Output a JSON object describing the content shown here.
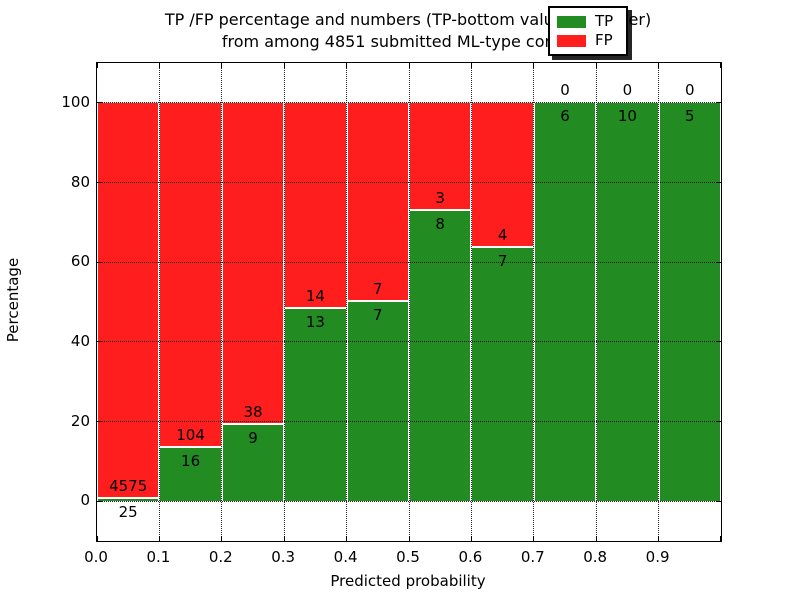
{
  "title": {
    "line1": "TP /FP percentage and numbers (TP-bottom value, FP-upper)",
    "line2": "from among 4851 submitted ML-type contacts"
  },
  "axes": {
    "xlabel": "Predicted probability",
    "ylabel": "Percentage",
    "x_tick_labels": [
      "0.0",
      "0.1",
      "0.2",
      "0.3",
      "0.4",
      "0.5",
      "0.6",
      "0.7",
      "0.8",
      "0.9"
    ],
    "y_tick_labels": [
      "0",
      "20",
      "40",
      "60",
      "80",
      "100"
    ],
    "y_tick_values": [
      0,
      20,
      40,
      60,
      80,
      100
    ],
    "ylim": [
      -10,
      110
    ]
  },
  "legend": {
    "entries": [
      {
        "label": "TP",
        "color": "#228b22"
      },
      {
        "label": "FP",
        "color": "#ff1e1e"
      }
    ]
  },
  "chart_data": {
    "type": "bar",
    "stacked": true,
    "title": "TP /FP percentage and numbers (TP-bottom value, FP-upper) from among 4851 submitted ML-type contacts",
    "xlabel": "Predicted probability",
    "ylabel": "Percentage",
    "total_contacts": 4851,
    "ylim": [
      -10,
      110
    ],
    "grid": true,
    "legend_position": "upper right",
    "bin_edges": [
      0.0,
      0.1,
      0.2,
      0.3,
      0.4,
      0.5,
      0.6,
      0.7,
      0.8,
      0.9,
      1.0
    ],
    "categories": [
      "0.0-0.1",
      "0.1-0.2",
      "0.2-0.3",
      "0.3-0.4",
      "0.4-0.5",
      "0.5-0.6",
      "0.6-0.7",
      "0.7-0.8",
      "0.8-0.9",
      "0.9-1.0"
    ],
    "series": [
      {
        "name": "TP",
        "color": "#228b22",
        "counts": [
          25,
          16,
          9,
          13,
          7,
          8,
          7,
          6,
          10,
          5
        ],
        "percentages": [
          0.54,
          13.33,
          19.15,
          48.15,
          50.0,
          72.73,
          63.64,
          100.0,
          100.0,
          100.0
        ]
      },
      {
        "name": "FP",
        "color": "#ff1e1e",
        "counts": [
          4575,
          104,
          38,
          14,
          7,
          3,
          4,
          0,
          0,
          0
        ],
        "percentages": [
          99.46,
          86.67,
          80.85,
          51.85,
          50.0,
          27.27,
          36.36,
          0.0,
          0.0,
          0.0
        ]
      }
    ]
  }
}
